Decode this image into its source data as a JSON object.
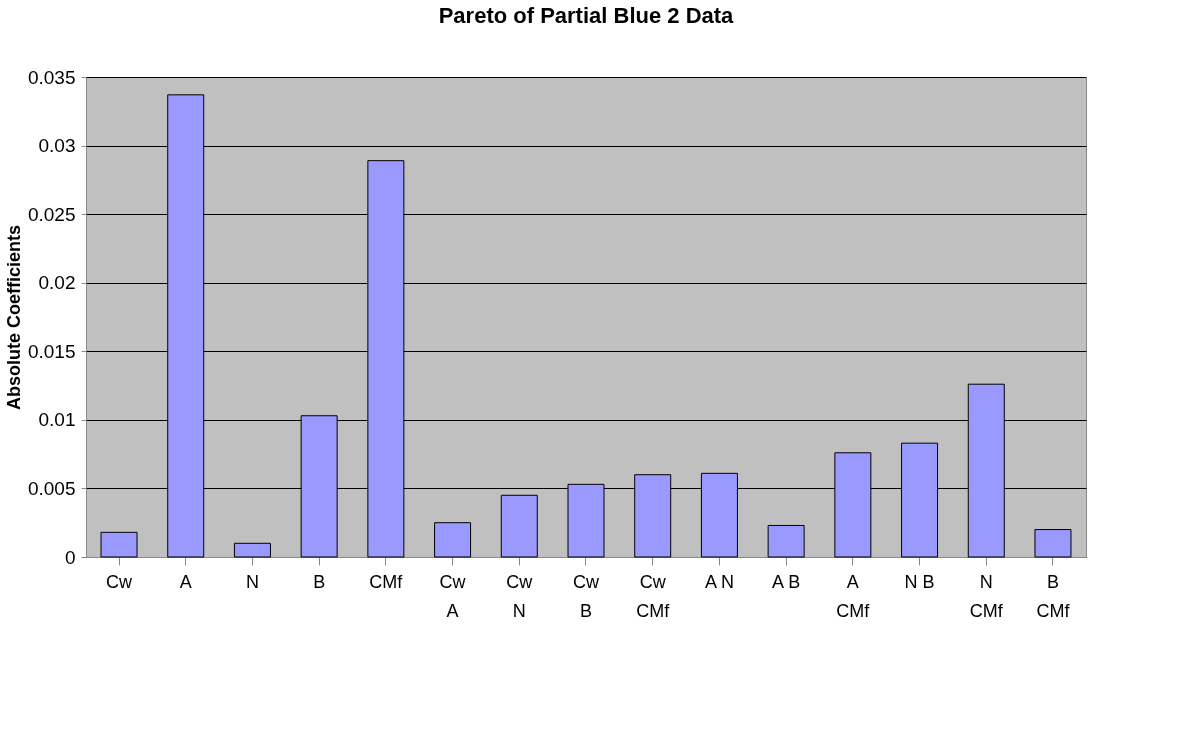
{
  "chart_data": {
    "type": "bar",
    "title": "Pareto of Partial Blue 2 Data",
    "ylabel": "Absolute Coefficients",
    "categories": [
      "Cw",
      "A",
      "N",
      "B",
      "CMf",
      "Cw A",
      "Cw N",
      "Cw B",
      "Cw CMf",
      "A N",
      "A B",
      "A CMf",
      "N B",
      "N CMf",
      "B CMf"
    ],
    "values": [
      0.0018,
      0.0337,
      0.001,
      0.0103,
      0.0289,
      0.0025,
      0.0045,
      0.0053,
      0.006,
      0.0061,
      0.0023,
      0.0076,
      0.0083,
      0.0126,
      0.002
    ],
    "color": "#9999ff",
    "ylim": [
      0,
      0.035
    ],
    "yticks": [
      0,
      0.005,
      0.01,
      0.015,
      0.02,
      0.025,
      0.03,
      0.035
    ],
    "grid": "y"
  }
}
